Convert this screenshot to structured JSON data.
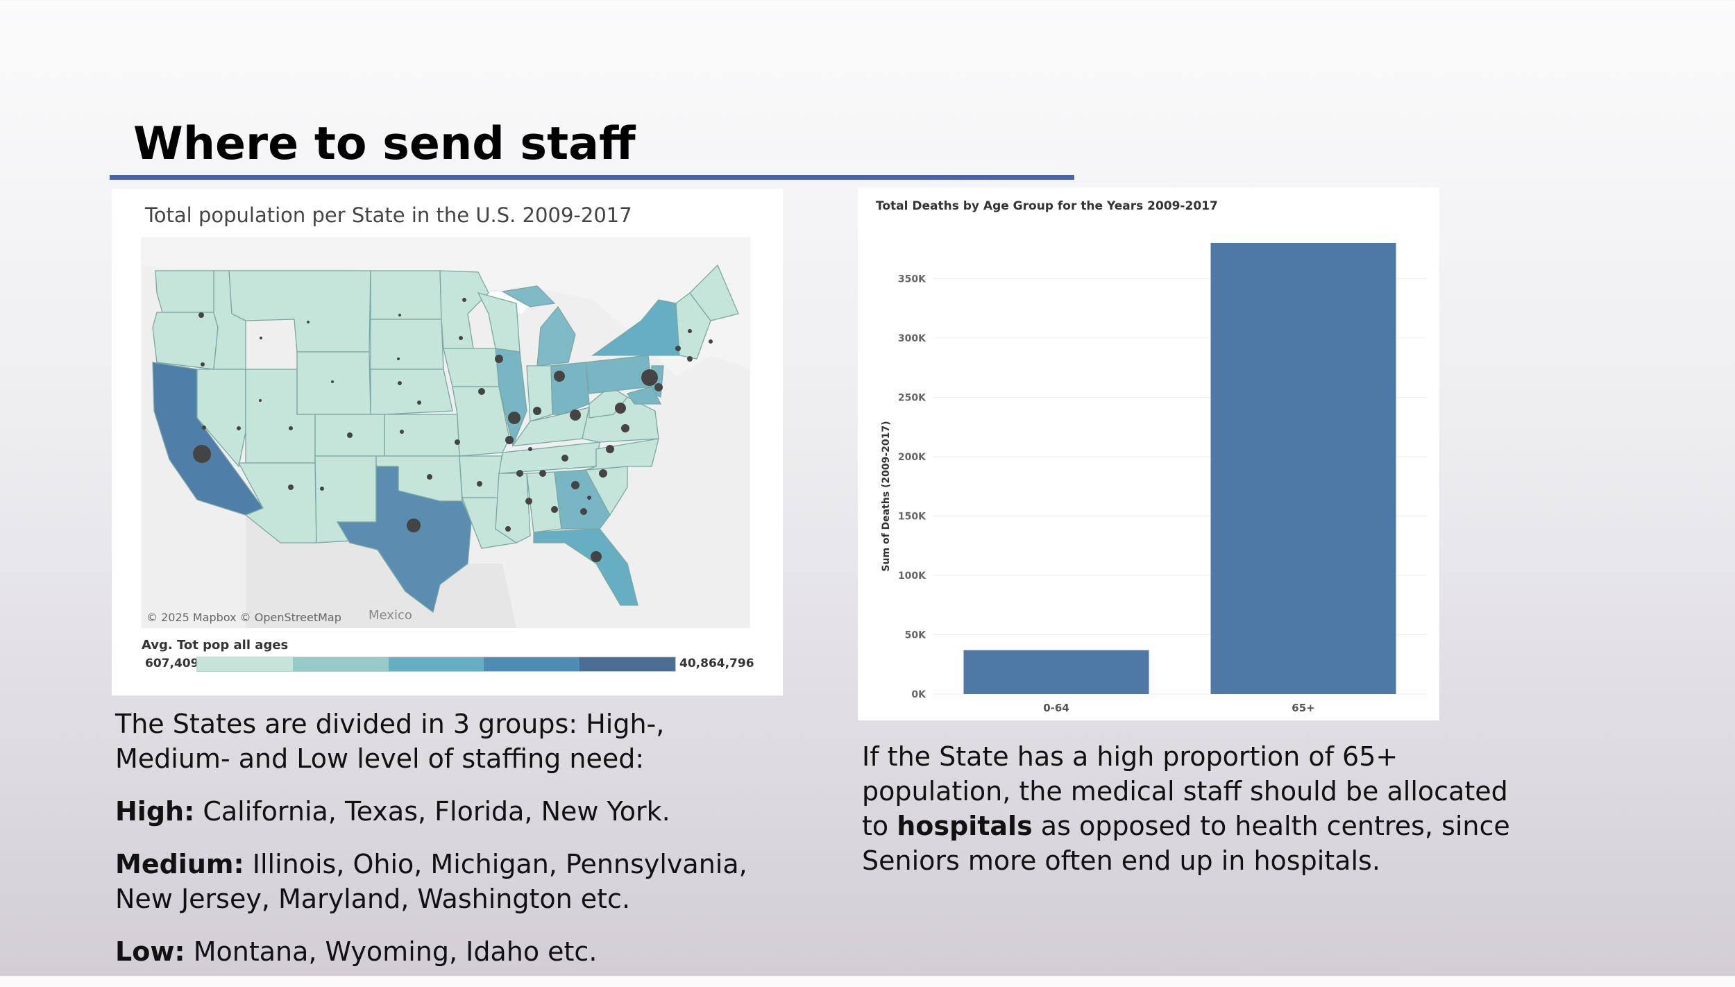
{
  "slide": {
    "title": "Where to send staff",
    "accent_color": "#4a63a8"
  },
  "map": {
    "title": "Total population per State in the U.S. 2009-2017",
    "credit": "© 2025 Mapbox  © OpenStreetMap",
    "country_label": "Mexico",
    "legend_title": "Avg. Tot pop all ages",
    "legend_min": "607,409",
    "legend_max": "40,864,796",
    "ramp_colors": [
      "#c5e4da",
      "#95cac9",
      "#66afc2",
      "#4f8cb3",
      "#4b6e95"
    ]
  },
  "chart_data": {
    "type": "bar",
    "title": "Total Deaths by Age Group for the Years 2009-2017",
    "xlabel": "",
    "ylabel": "Sum of Deaths (2009-2017)",
    "categories": [
      "0-64",
      "65+"
    ],
    "values": [
      37000,
      380000
    ],
    "ylim": [
      0,
      380000
    ],
    "ticks": [
      0,
      50000,
      100000,
      150000,
      200000,
      250000,
      300000,
      350000
    ],
    "tick_labels": [
      "0K",
      "50K",
      "100K",
      "150K",
      "200K",
      "250K",
      "300K",
      "350K"
    ],
    "grid": true,
    "bar_color": "#4e79a7"
  },
  "left_text": {
    "intro": "The States are divided in 3 groups: High-, Medium- and Low level of staffing need:",
    "high_label": "High:",
    "high_text": " California, Texas, Florida, New York.",
    "medium_label": "Medium:",
    "medium_text": " Illinois, Ohio, Michigan, Pennsylvania, New Jersey, Maryland, Washington etc.",
    "low_label": "Low:",
    "low_text": " Montana, Wyoming, Idaho etc."
  },
  "right_text": {
    "part1": "If the State has a high proportion of 65+ population, the medical staff should be allocated to ",
    "bold": "hospitals",
    "part2": " as opposed to health centres, since Seniors more often end up in hospitals."
  }
}
